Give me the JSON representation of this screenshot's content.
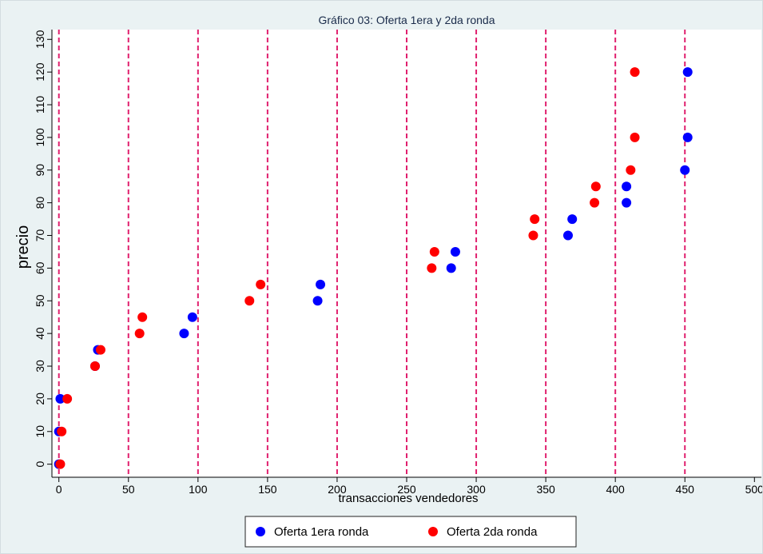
{
  "chart_data": {
    "type": "scatter",
    "title": "Gráfico 03: Oferta 1era y 2da ronda",
    "xlabel": "transacciones vendedores",
    "ylabel": "precio",
    "xlim": [
      -5,
      505
    ],
    "ylim": [
      -4,
      133
    ],
    "xticks": [
      "0",
      "50",
      "100",
      "150",
      "200",
      "250",
      "300",
      "350",
      "400",
      "450",
      "500"
    ],
    "yticks": [
      "0",
      "10",
      "20",
      "30",
      "40",
      "50",
      "60",
      "70",
      "80",
      "90",
      "100",
      "110",
      "120",
      "130"
    ],
    "vlines": [
      0,
      50,
      100,
      150,
      200,
      250,
      300,
      350,
      400,
      450
    ],
    "grid": false,
    "legend_position": "bottom",
    "colors": {
      "series1": "#0000ff",
      "series2": "#ff0000",
      "vlines": "#e0206e",
      "panel_bg": "#eaf2f3",
      "plot_bg": "#ffffff"
    },
    "series": [
      {
        "name": "Oferta 1era ronda",
        "points": [
          [
            0,
            0
          ],
          [
            0,
            10
          ],
          [
            1,
            20
          ],
          [
            26,
            30
          ],
          [
            28,
            35
          ],
          [
            90,
            40
          ],
          [
            96,
            45
          ],
          [
            186,
            50
          ],
          [
            188,
            55
          ],
          [
            282,
            60
          ],
          [
            285,
            65
          ],
          [
            366,
            70
          ],
          [
            369,
            75
          ],
          [
            408,
            80
          ],
          [
            408,
            85
          ],
          [
            450,
            90
          ],
          [
            452,
            100
          ],
          [
            452,
            120
          ]
        ]
      },
      {
        "name": "Oferta 2da ronda",
        "points": [
          [
            1,
            0
          ],
          [
            2,
            10
          ],
          [
            6,
            20
          ],
          [
            26,
            30
          ],
          [
            30,
            35
          ],
          [
            58,
            40
          ],
          [
            60,
            45
          ],
          [
            137,
            50
          ],
          [
            145,
            55
          ],
          [
            268,
            60
          ],
          [
            270,
            65
          ],
          [
            341,
            70
          ],
          [
            342,
            75
          ],
          [
            385,
            80
          ],
          [
            386,
            85
          ],
          [
            411,
            90
          ],
          [
            414,
            100
          ],
          [
            414,
            120
          ]
        ]
      }
    ]
  }
}
